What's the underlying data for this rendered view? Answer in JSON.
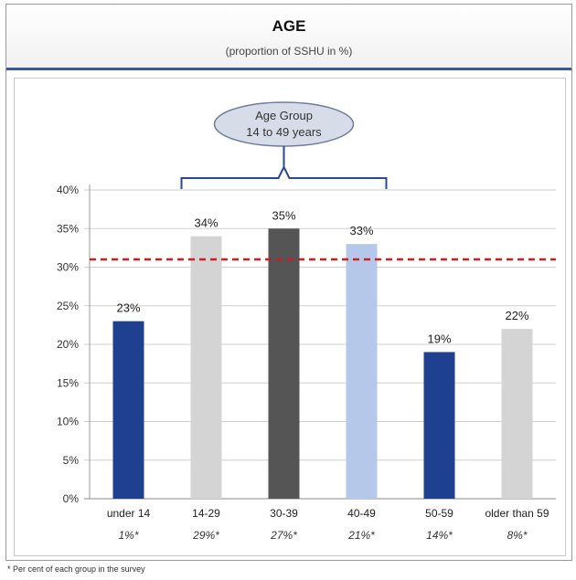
{
  "header": {
    "title": "AGE",
    "subtitle": "(proportion of SSHU in %)"
  },
  "callout": {
    "line1": "Age Group",
    "line2": "14 to 49 years"
  },
  "footnote": "* Per cent of each group in the survey",
  "chart_data": {
    "type": "bar",
    "categories": [
      "under 14",
      "14-29",
      "30-39",
      "40-49",
      "50-59",
      "older than 59"
    ],
    "sub_labels": [
      "1%*",
      "29%*",
      "27%*",
      "21%*",
      "14%*",
      "8%*"
    ],
    "values": [
      23,
      34,
      35,
      33,
      19,
      22
    ],
    "value_labels": [
      "23%",
      "34%",
      "35%",
      "33%",
      "19%",
      "22%"
    ],
    "colors": [
      "#1f3f8f",
      "#d4d4d4",
      "#555555",
      "#b6c8ea",
      "#1f3f8f",
      "#d4d4d4"
    ],
    "y_ticks": [
      "0%",
      "5%",
      "10%",
      "15%",
      "20%",
      "25%",
      "30%",
      "35%",
      "40%"
    ],
    "ylim": [
      0,
      40
    ],
    "reference_line": {
      "value": 31,
      "color": "#cc1f1f",
      "style": "dashed"
    },
    "grid": true,
    "bracket_categories": [
      "14-29",
      "40-49"
    ]
  }
}
